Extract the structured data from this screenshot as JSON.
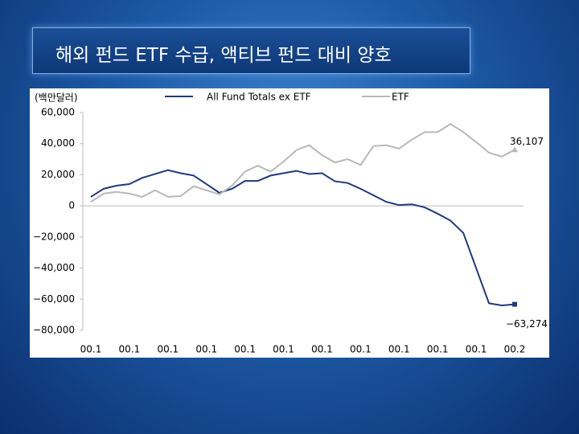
{
  "chart_data": {
    "type": "line",
    "title": "해외 펀드 ETF 수급, 액티브 펀드 대비 양호",
    "y_label": "(백만달러)",
    "categories": [
      "00.1",
      null,
      null,
      "00.1",
      null,
      null,
      "00.1",
      null,
      null,
      "00.1",
      null,
      null,
      "00.1",
      null,
      null,
      "00.1",
      null,
      null,
      "00.1",
      null,
      null,
      "00.1",
      null,
      null,
      "00.1",
      null,
      null,
      "00.1",
      null,
      null,
      "00.1",
      null,
      null,
      "00.2"
    ],
    "ylim": [
      -80000,
      60000
    ],
    "yticks": [
      {
        "value": -80000,
        "label": "−80,000"
      },
      {
        "value": -60000,
        "label": "−60,000"
      },
      {
        "value": -40000,
        "label": "−40,000"
      },
      {
        "value": -20000,
        "label": "−20,000"
      },
      0,
      {
        "value": 20000,
        "label": "20,000"
      },
      {
        "value": 40000,
        "label": "40,000"
      },
      {
        "value": 60000,
        "label": "60,000"
      }
    ],
    "legend": "top",
    "series": [
      {
        "name": "All Fund Totals ex ETF",
        "color": "#1f3a7a",
        "marker": "square",
        "values": [
          5800,
          11000,
          13000,
          14000,
          18000,
          20500,
          23000,
          21000,
          19500,
          14000,
          8400,
          11000,
          16000,
          16000,
          19500,
          21000,
          22500,
          20500,
          21000,
          15800,
          14700,
          11000,
          6800,
          2600,
          500,
          1000,
          -1000,
          -5000,
          -9500,
          -17400,
          -40000,
          -62600,
          -64000,
          -63274
        ],
        "value_labels": [
          null,
          null,
          null,
          null,
          null,
          null,
          null,
          null,
          null,
          null,
          null,
          null,
          null,
          null,
          null,
          null,
          null,
          null,
          null,
          null,
          null,
          null,
          null,
          null,
          null,
          null,
          null,
          null,
          null,
          null,
          null,
          null,
          null,
          "−63,274"
        ]
      },
      {
        "name": "ETF",
        "color": "#b8b8b8",
        "marker": "triangle",
        "values": [
          2600,
          7900,
          9000,
          7900,
          5800,
          10000,
          5800,
          6300,
          12600,
          10000,
          7400,
          13000,
          22000,
          25800,
          22000,
          28400,
          35800,
          39000,
          32600,
          27900,
          30000,
          26300,
          38400,
          39000,
          36800,
          42600,
          47400,
          47400,
          52600,
          47400,
          41000,
          34200,
          31600,
          36107
        ],
        "value_labels": [
          null,
          null,
          null,
          null,
          null,
          null,
          null,
          null,
          null,
          null,
          null,
          null,
          null,
          null,
          null,
          null,
          null,
          null,
          null,
          null,
          null,
          null,
          null,
          null,
          null,
          null,
          null,
          null,
          null,
          null,
          null,
          null,
          null,
          "36,107"
        ]
      }
    ]
  }
}
